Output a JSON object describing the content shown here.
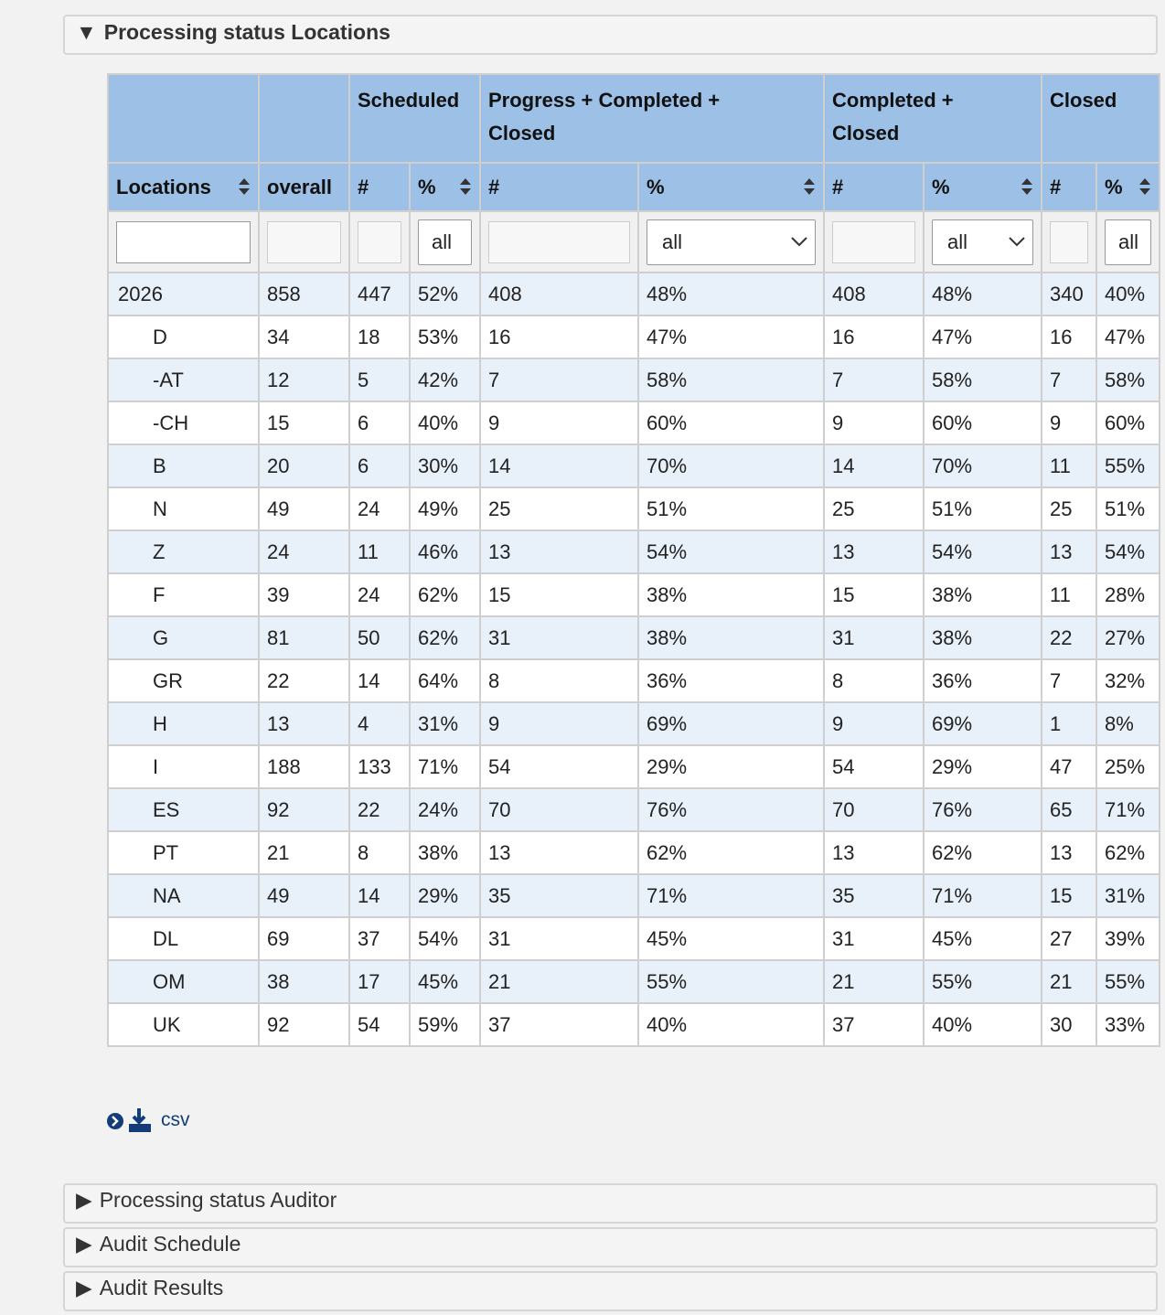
{
  "panels": {
    "open_title": "Processing status Locations",
    "closed_titles": [
      "Processing status Auditor",
      "Audit Schedule",
      "Audit Results"
    ]
  },
  "table": {
    "groups": [
      "Scheduled",
      "Progress + Completed + Closed",
      "Completed + Closed",
      "Closed"
    ],
    "columns": [
      "Locations",
      "overall",
      "#",
      "%",
      "#",
      "%",
      "#",
      "%",
      "#",
      "%"
    ],
    "filter_option": "all",
    "rows": [
      [
        "2026",
        858,
        447,
        "52%",
        408,
        "48%",
        408,
        "48%",
        340,
        "40%"
      ],
      [
        "D",
        34,
        18,
        "53%",
        16,
        "47%",
        16,
        "47%",
        16,
        "47%"
      ],
      [
        "-AT",
        12,
        5,
        "42%",
        7,
        "58%",
        7,
        "58%",
        7,
        "58%"
      ],
      [
        "-CH",
        15,
        6,
        "40%",
        9,
        "60%",
        9,
        "60%",
        9,
        "60%"
      ],
      [
        "B",
        20,
        6,
        "30%",
        14,
        "70%",
        14,
        "70%",
        11,
        "55%"
      ],
      [
        "N",
        49,
        24,
        "49%",
        25,
        "51%",
        25,
        "51%",
        25,
        "51%"
      ],
      [
        "Z",
        24,
        11,
        "46%",
        13,
        "54%",
        13,
        "54%",
        13,
        "54%"
      ],
      [
        "F",
        39,
        24,
        "62%",
        15,
        "38%",
        15,
        "38%",
        11,
        "28%"
      ],
      [
        "G",
        81,
        50,
        "62%",
        31,
        "38%",
        31,
        "38%",
        22,
        "27%"
      ],
      [
        "GR",
        22,
        14,
        "64%",
        8,
        "36%",
        8,
        "36%",
        7,
        "32%"
      ],
      [
        "H",
        13,
        4,
        "31%",
        9,
        "69%",
        9,
        "69%",
        1,
        "8%"
      ],
      [
        "I",
        188,
        133,
        "71%",
        54,
        "29%",
        54,
        "29%",
        47,
        "25%"
      ],
      [
        "ES",
        92,
        22,
        "24%",
        70,
        "76%",
        70,
        "76%",
        65,
        "71%"
      ],
      [
        "PT",
        21,
        8,
        "38%",
        13,
        "62%",
        13,
        "62%",
        13,
        "62%"
      ],
      [
        "NA",
        49,
        14,
        "29%",
        35,
        "71%",
        35,
        "71%",
        15,
        "31%"
      ],
      [
        "DL",
        69,
        37,
        "54%",
        31,
        "45%",
        31,
        "45%",
        27,
        "39%"
      ],
      [
        "OM",
        38,
        17,
        "45%",
        21,
        "55%",
        21,
        "55%",
        21,
        "55%"
      ],
      [
        "UK",
        92,
        54,
        "59%",
        37,
        "40%",
        37,
        "40%",
        30,
        "33%"
      ]
    ]
  },
  "export": {
    "label": "csv"
  }
}
